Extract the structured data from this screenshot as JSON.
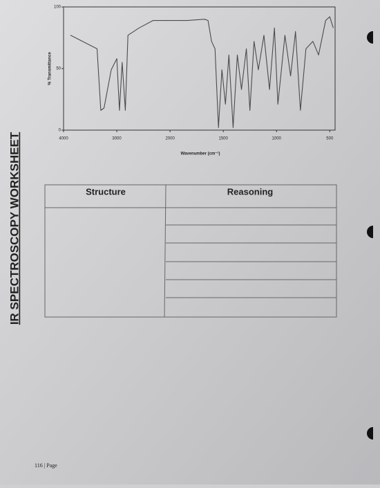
{
  "chart_data": {
    "type": "line",
    "x": [
      3870,
      3370,
      3300,
      3240,
      3105,
      3000,
      2950,
      2900,
      2840,
      2790,
      2580,
      2320,
      2000,
      1838,
      1675,
      1643,
      1610,
      1578,
      1545,
      1513,
      1480,
      1447,
      1408,
      1368,
      1329,
      1283,
      1250,
      1211,
      1171,
      1118,
      1066,
      1020,
      987,
      921,
      868,
      822,
      776,
      724,
      658,
      605,
      539,
      500,
      467
    ],
    "values": [
      77,
      66,
      16,
      18,
      49,
      58,
      16,
      55,
      16,
      77,
      83,
      89,
      89,
      89,
      90,
      89,
      72,
      66,
      2,
      49,
      21,
      61,
      2,
      61,
      33,
      66,
      16,
      72,
      49,
      77,
      33,
      83,
      21,
      77,
      44,
      80,
      16,
      66,
      72,
      61,
      89,
      92,
      83
    ],
    "color": "#4a4a4a",
    "xlim": [
      4000,
      450
    ],
    "ylim": [
      0,
      100
    ],
    "xticks": [
      4000,
      3000,
      2000,
      1500,
      1000,
      500
    ],
    "yticks": [
      0,
      50,
      100
    ],
    "xlabel": "Wavenumber (cm⁻¹)",
    "ylabel": "% Transmittance"
  },
  "worksheet": {
    "side_title": "IR SPECTROSCOPY WORKSHEET",
    "table": {
      "headers": [
        "Structure",
        "Reasoning"
      ]
    },
    "footer": "116 | Page"
  }
}
